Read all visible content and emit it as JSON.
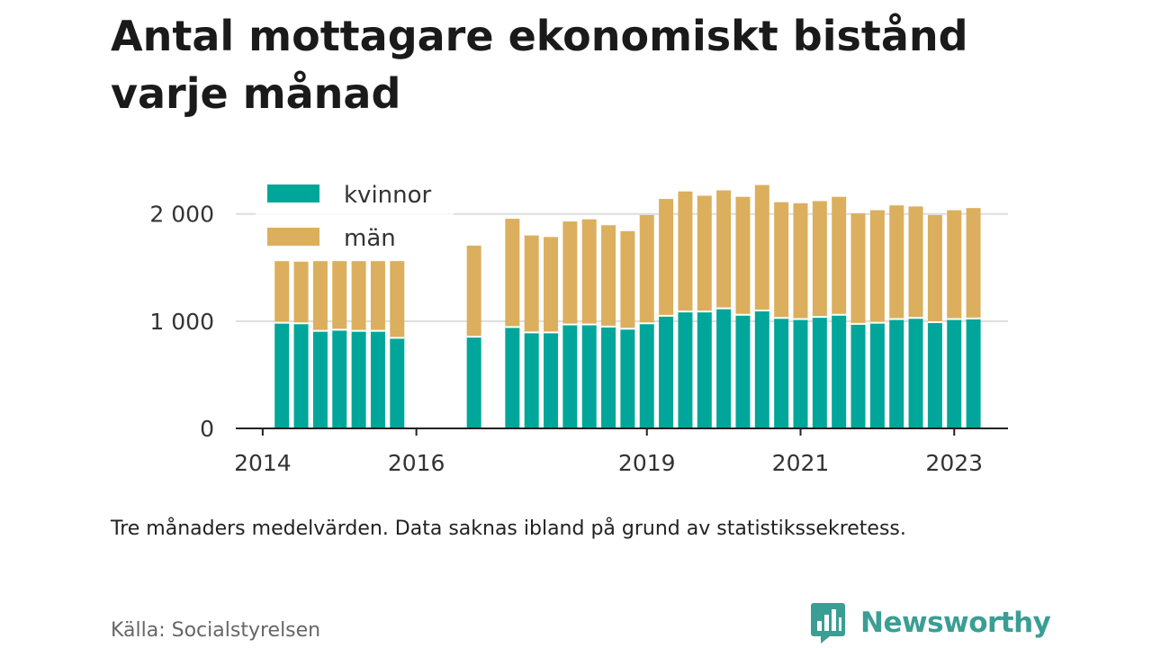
{
  "title_line1": "Antal mottagare ekonomiskt bistånd",
  "title_line2": "varje månad",
  "note": "Tre månaders medelvärden. Data saknas ibland på grund av statistikssekretess.",
  "source": "Källa: Socialstyrelsen",
  "brand": "Newsworthy",
  "colors": {
    "kvinnor": "#00a69a",
    "man": "#dbaf5e",
    "grid": "#dddddd",
    "axis": "#222222",
    "brand": "#3a9e94"
  },
  "chart_data": {
    "type": "bar",
    "stacked": true,
    "ylim": [
      0,
      2300
    ],
    "yticks": [
      0,
      1000,
      2000
    ],
    "ytick_labels": [
      "0",
      "1 000",
      "2 000"
    ],
    "xticks": [
      {
        "label": "2014",
        "at": 2014.0
      },
      {
        "label": "2016",
        "at": 2016.0
      },
      {
        "label": "2019",
        "at": 2019.0
      },
      {
        "label": "2021",
        "at": 2021.0
      },
      {
        "label": "2023",
        "at": 2023.0
      }
    ],
    "legend": {
      "position": "top-left",
      "items": [
        {
          "name": "kvinnor"
        },
        {
          "name": "män"
        }
      ]
    },
    "x": [
      2014.25,
      2014.5,
      2014.75,
      2015.0,
      2015.25,
      2015.5,
      2015.75,
      2016.75,
      2017.25,
      2017.5,
      2017.75,
      2018.0,
      2018.25,
      2018.5,
      2018.75,
      2019.0,
      2019.25,
      2019.5,
      2019.75,
      2020.0,
      2020.25,
      2020.5,
      2020.75,
      2021.0,
      2021.25,
      2021.5,
      2021.75,
      2022.0,
      2022.25,
      2022.5,
      2022.75,
      2023.0,
      2023.25
    ],
    "series": [
      {
        "name": "kvinnor",
        "values": [
          985,
          980,
          910,
          920,
          910,
          910,
          845,
          855,
          945,
          895,
          895,
          970,
          970,
          950,
          930,
          980,
          1050,
          1090,
          1090,
          1120,
          1060,
          1100,
          1030,
          1020,
          1040,
          1060,
          975,
          985,
          1020,
          1030,
          990,
          1020,
          1025
        ]
      },
      {
        "name": "män",
        "values": [
          575,
          575,
          650,
          640,
          650,
          650,
          715,
          850,
          1010,
          905,
          890,
          960,
          980,
          945,
          910,
          1010,
          1090,
          1120,
          1080,
          1100,
          1100,
          1170,
          1080,
          1080,
          1080,
          1100,
          1030,
          1050,
          1060,
          1040,
          1000,
          1015,
          1030
        ]
      }
    ]
  }
}
